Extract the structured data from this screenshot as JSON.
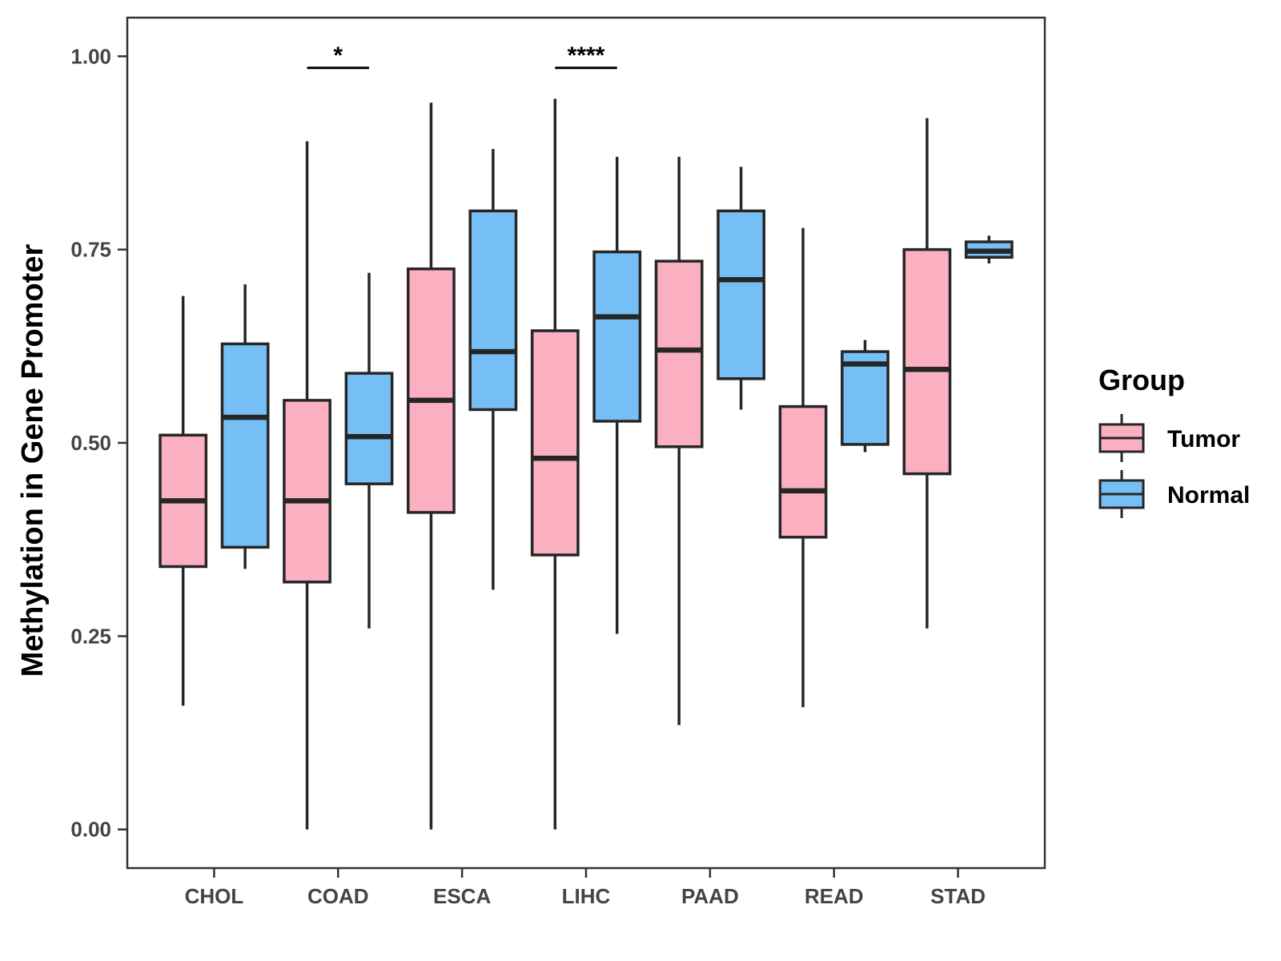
{
  "chart_data": {
    "type": "boxplot",
    "title": "",
    "xlabel": "",
    "ylabel": "Methylation in Gene Promoter",
    "ylim": [
      -0.05,
      1.05
    ],
    "yticks": [
      0.0,
      0.25,
      0.5,
      0.75,
      1.0
    ],
    "ytick_labels": [
      "0.00",
      "0.25",
      "0.50",
      "0.75",
      "1.00"
    ],
    "grid": false,
    "categories": [
      "CHOL",
      "COAD",
      "ESCA",
      "LIHC",
      "PAAD",
      "READ",
      "STAD"
    ],
    "series": [
      {
        "name": "Tumor",
        "color": "#fbb0c2",
        "boxes": [
          {
            "min": 0.16,
            "q1": 0.34,
            "median": 0.425,
            "q3": 0.51,
            "max": 0.69
          },
          {
            "min": 0.0,
            "q1": 0.32,
            "median": 0.425,
            "q3": 0.555,
            "max": 0.89
          },
          {
            "min": 0.0,
            "q1": 0.41,
            "median": 0.555,
            "q3": 0.725,
            "max": 0.94
          },
          {
            "min": 0.0,
            "q1": 0.355,
            "median": 0.48,
            "q3": 0.645,
            "max": 0.945
          },
          {
            "min": 0.135,
            "q1": 0.495,
            "median": 0.62,
            "q3": 0.735,
            "max": 0.87
          },
          {
            "min": 0.158,
            "q1": 0.378,
            "median": 0.438,
            "q3": 0.547,
            "max": 0.778
          },
          {
            "min": 0.26,
            "q1": 0.46,
            "median": 0.595,
            "q3": 0.75,
            "max": 0.92
          }
        ]
      },
      {
        "name": "Normal",
        "color": "#76bff6",
        "boxes": [
          {
            "min": 0.337,
            "q1": 0.365,
            "median": 0.533,
            "q3": 0.628,
            "max": 0.705
          },
          {
            "min": 0.26,
            "q1": 0.447,
            "median": 0.508,
            "q3": 0.59,
            "max": 0.72
          },
          {
            "min": 0.31,
            "q1": 0.543,
            "median": 0.618,
            "q3": 0.8,
            "max": 0.88
          },
          {
            "min": 0.253,
            "q1": 0.528,
            "median": 0.663,
            "q3": 0.747,
            "max": 0.87
          },
          {
            "min": 0.543,
            "q1": 0.583,
            "median": 0.711,
            "q3": 0.8,
            "max": 0.857
          },
          {
            "min": 0.488,
            "q1": 0.498,
            "median": 0.602,
            "q3": 0.618,
            "max": 0.633
          },
          {
            "min": 0.732,
            "q1": 0.74,
            "median": 0.748,
            "q3": 0.76,
            "max": 0.768
          }
        ]
      }
    ],
    "significance": [
      {
        "category": "COAD",
        "label": "*",
        "y": 0.985
      },
      {
        "category": "LIHC",
        "label": "****",
        "y": 0.985
      }
    ],
    "legend": {
      "title": "Group",
      "position": "right",
      "entries": [
        "Tumor",
        "Normal"
      ]
    }
  }
}
